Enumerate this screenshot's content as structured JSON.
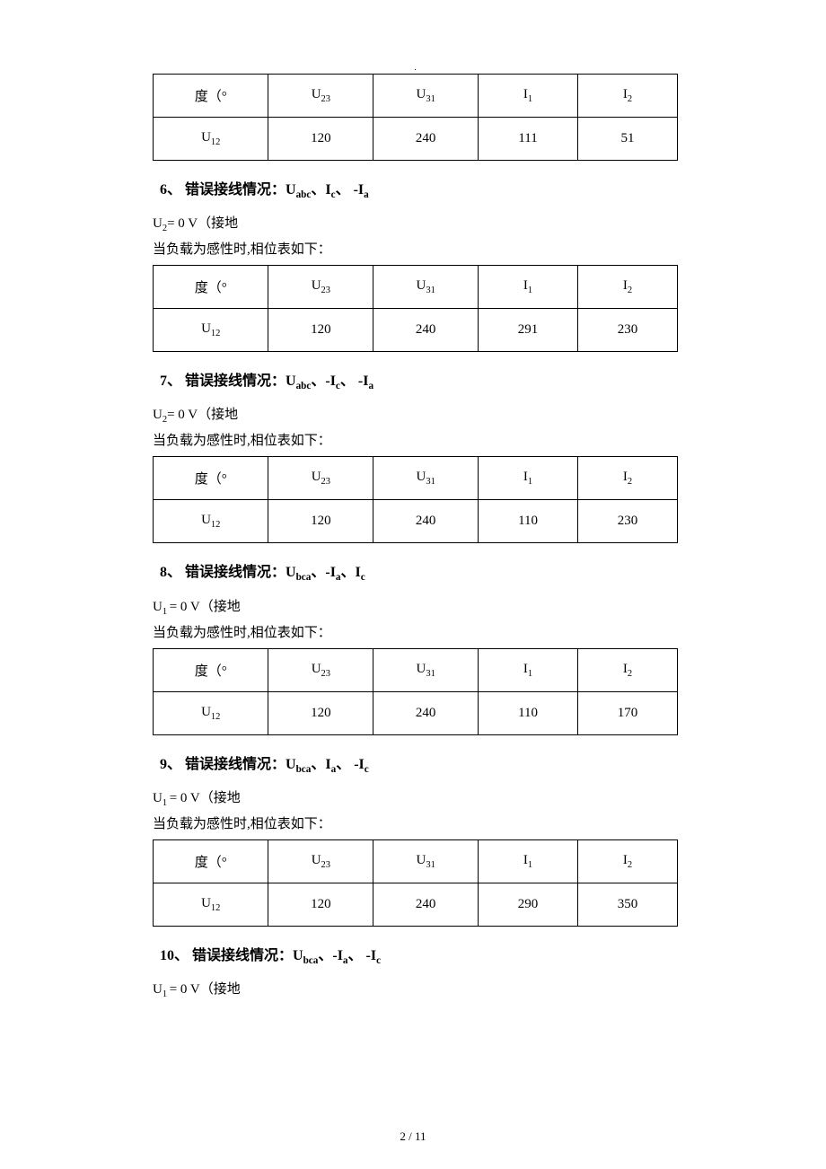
{
  "headerDot": ".",
  "columnHeaders": {
    "c1_label": "度（°",
    "c2_label": "U",
    "c2_sub": "23",
    "c3_label": "U",
    "c3_sub": "31",
    "c4_label": "I",
    "c4_sub": "1",
    "c5_label": "I",
    "c5_sub": "2",
    "row2_c1_label": "U",
    "row2_c1_sub": "12"
  },
  "tables": {
    "t1": {
      "v2": "120",
      "v3": "240",
      "v4": "111",
      "v5": "51"
    },
    "t2": {
      "v2": "120",
      "v3": "240",
      "v4": "291",
      "v5": "230"
    },
    "t3": {
      "v2": "120",
      "v3": "240",
      "v4": "110",
      "v5": "230"
    },
    "t4": {
      "v2": "120",
      "v3": "240",
      "v4": "110",
      "v5": "170"
    },
    "t5": {
      "v2": "120",
      "v3": "240",
      "v4": "290",
      "v5": "350"
    }
  },
  "sections": {
    "s6": {
      "num": "6、",
      "title_prefix": "错误接线情况：U",
      "sub1": "abc",
      "sep1": "、I",
      "sub2": "c",
      "sep2": "、 -I",
      "sub3": "a",
      "u_label": "U",
      "u_sub": "2",
      "u_rest": "= 0 V（接地",
      "desc": "当负载为感性时,相位表如下："
    },
    "s7": {
      "num": "7、",
      "title_prefix": "错误接线情况：U",
      "sub1": "abc",
      "sep1": "、-I",
      "sub2": "c",
      "sep2": "、 -I",
      "sub3": "a",
      "u_label": "U",
      "u_sub": "2",
      "u_rest": "= 0 V（接地",
      "desc": "当负载为感性时,相位表如下："
    },
    "s8": {
      "num": "8、",
      "title_prefix": "错误接线情况：U",
      "sub1": "bca",
      "sep1": "、-I",
      "sub2": "a",
      "sep2": "、I",
      "sub3": "c",
      "u_label": "U",
      "u_sub": "1 ",
      "u_rest": "= 0 V（接地",
      "desc": "当负载为感性时,相位表如下："
    },
    "s9": {
      "num": "9、",
      "title_prefix": "错误接线情况：U",
      "sub1": "bca",
      "sep1": "、I",
      "sub2": "a",
      "sep2": "、 -I",
      "sub3": "c",
      "u_label": "U",
      "u_sub": "1 ",
      "u_rest": "= 0 V（接地",
      "desc": "当负载为感性时,相位表如下："
    },
    "s10": {
      "num": "10、",
      "title_prefix": "错误接线情况：U",
      "sub1": "bca",
      "sep1": "、-I",
      "sub2": "a",
      "sep2": "、 -I",
      "sub3": "c",
      "u_label": "U",
      "u_sub": "1 ",
      "u_rest": "= 0 V（接地"
    }
  },
  "footer": "2  /  11"
}
